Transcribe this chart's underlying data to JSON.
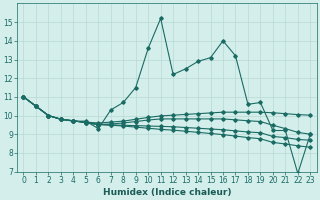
{
  "xlabel": "Humidex (Indice chaleur)",
  "bg_color": "#d4eeeb",
  "grid_color": "#b8d8d4",
  "line_color": "#1a6b63",
  "x_values": [
    0,
    1,
    2,
    3,
    4,
    5,
    6,
    7,
    8,
    9,
    10,
    11,
    12,
    13,
    14,
    15,
    16,
    17,
    18,
    19,
    20,
    21,
    22,
    23
  ],
  "series": [
    [
      11,
      10.5,
      10,
      9.8,
      9.7,
      9.7,
      9.3,
      10.3,
      10.7,
      11.5,
      13.6,
      15.2,
      12.2,
      12.5,
      12.9,
      13.1,
      14.0,
      13.2,
      10.6,
      10.7,
      9.2,
      9.2,
      6.9,
      9.0
    ],
    [
      11,
      10.5,
      10,
      9.8,
      9.7,
      9.65,
      9.6,
      9.65,
      9.7,
      9.8,
      9.9,
      9.98,
      10.02,
      10.06,
      10.1,
      10.14,
      10.18,
      10.18,
      10.18,
      10.18,
      10.15,
      10.1,
      10.05,
      10.02
    ],
    [
      11,
      10.5,
      10,
      9.8,
      9.72,
      9.62,
      9.52,
      9.55,
      9.6,
      9.68,
      9.76,
      9.82,
      9.82,
      9.82,
      9.82,
      9.82,
      9.82,
      9.77,
      9.72,
      9.68,
      9.48,
      9.3,
      9.1,
      9.0
    ],
    [
      11,
      10.5,
      10,
      9.8,
      9.72,
      9.62,
      9.52,
      9.5,
      9.48,
      9.46,
      9.44,
      9.42,
      9.4,
      9.36,
      9.32,
      9.28,
      9.24,
      9.18,
      9.12,
      9.08,
      8.88,
      8.82,
      8.72,
      8.68
    ],
    [
      11,
      10.5,
      10,
      9.8,
      9.72,
      9.62,
      9.52,
      9.48,
      9.44,
      9.38,
      9.32,
      9.26,
      9.22,
      9.16,
      9.1,
      9.04,
      8.98,
      8.9,
      8.82,
      8.76,
      8.56,
      8.48,
      8.38,
      8.3
    ]
  ],
  "ylim": [
    7,
    16
  ],
  "yticks": [
    7,
    8,
    9,
    10,
    11,
    12,
    13,
    14,
    15
  ],
  "xlim": [
    -0.5,
    23.5
  ],
  "xticks": [
    0,
    1,
    2,
    3,
    4,
    5,
    6,
    7,
    8,
    9,
    10,
    11,
    12,
    13,
    14,
    15,
    16,
    17,
    18,
    19,
    20,
    21,
    22,
    23
  ],
  "marker": "D",
  "markersize": 1.8,
  "linewidth": 0.8,
  "xlabel_fontsize": 6.5,
  "tick_fontsize": 5.5
}
